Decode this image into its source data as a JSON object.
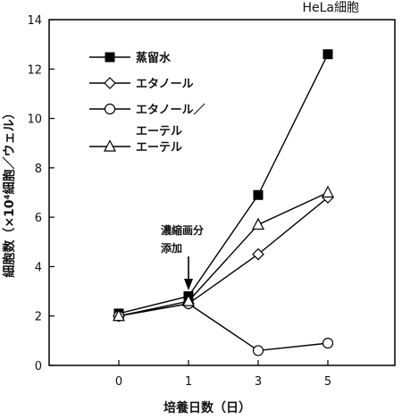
{
  "chart_data": {
    "type": "line",
    "title": "HeLa細胞",
    "xlabel": "培養日数（日）",
    "ylabel": "細胞数（×10⁴細胞／ウェル）",
    "x": [
      0,
      1,
      3,
      5
    ],
    "xticks": [
      "0",
      "1",
      "3",
      "5"
    ],
    "ylim": [
      0,
      14
    ],
    "yticks": [
      "0",
      "2",
      "4",
      "6",
      "8",
      "10",
      "12",
      "14"
    ],
    "grid": false,
    "legend_position": "top-left",
    "series": [
      {
        "name": "蒸留水",
        "marker": "filled-square",
        "values": [
          2.1,
          2.8,
          6.9,
          12.6
        ]
      },
      {
        "name": "エタノール",
        "marker": "open-diamond",
        "values": [
          2.0,
          2.5,
          4.5,
          6.8
        ]
      },
      {
        "name": "エタノール／エーテル",
        "marker": "open-circle",
        "values": [
          2.0,
          2.5,
          0.6,
          0.9
        ]
      },
      {
        "name": "エーテル",
        "marker": "open-triangle",
        "values": [
          2.0,
          2.6,
          5.7,
          7.0
        ]
      }
    ],
    "legend_lines": [
      [
        "蒸留水"
      ],
      [
        "エタノール"
      ],
      [
        "エタノール／",
        "エーテル"
      ],
      [
        "エーテル"
      ]
    ],
    "annotation": {
      "lines": [
        "濃縮画分",
        "添加"
      ],
      "x": 1
    }
  }
}
